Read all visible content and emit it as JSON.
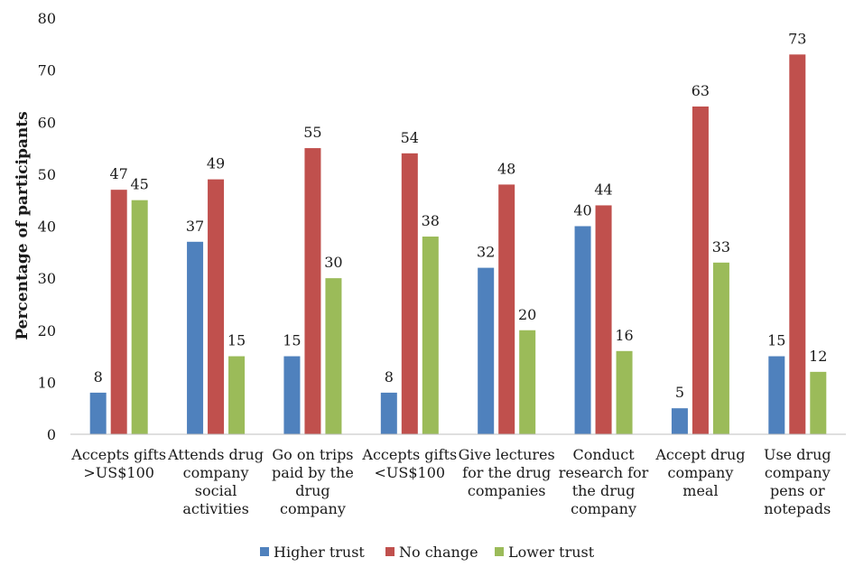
{
  "chart_data": {
    "type": "bar",
    "title": "",
    "xlabel": "",
    "ylabel": "Percentage of participants",
    "ylim": [
      0,
      80
    ],
    "yticks": [
      0,
      10,
      20,
      30,
      40,
      50,
      60,
      70,
      80
    ],
    "grid": false,
    "legend_position": "bottom",
    "categories": [
      [
        "Accepts gifts",
        ">US$100"
      ],
      [
        "Attends drug",
        "company",
        "social",
        "activities"
      ],
      [
        "Go on trips",
        "paid by the",
        "drug",
        "company"
      ],
      [
        "Accepts gifts",
        "<US$100"
      ],
      [
        "Give lectures",
        "for the drug",
        "companies"
      ],
      [
        "Conduct",
        "research for",
        "the drug",
        "company"
      ],
      [
        "Accept drug",
        "company",
        "meal"
      ],
      [
        "Use drug",
        "company",
        "pens or",
        "notepads"
      ]
    ],
    "series": [
      {
        "name": "Higher trust",
        "color": "#4f81bd",
        "values": [
          8,
          37,
          15,
          8,
          32,
          40,
          5,
          15
        ]
      },
      {
        "name": "No change",
        "color": "#c0504d",
        "values": [
          47,
          49,
          55,
          54,
          48,
          44,
          63,
          73
        ]
      },
      {
        "name": "Lower trust",
        "color": "#9bbb59",
        "values": [
          45,
          15,
          30,
          38,
          20,
          16,
          33,
          12
        ]
      }
    ]
  }
}
